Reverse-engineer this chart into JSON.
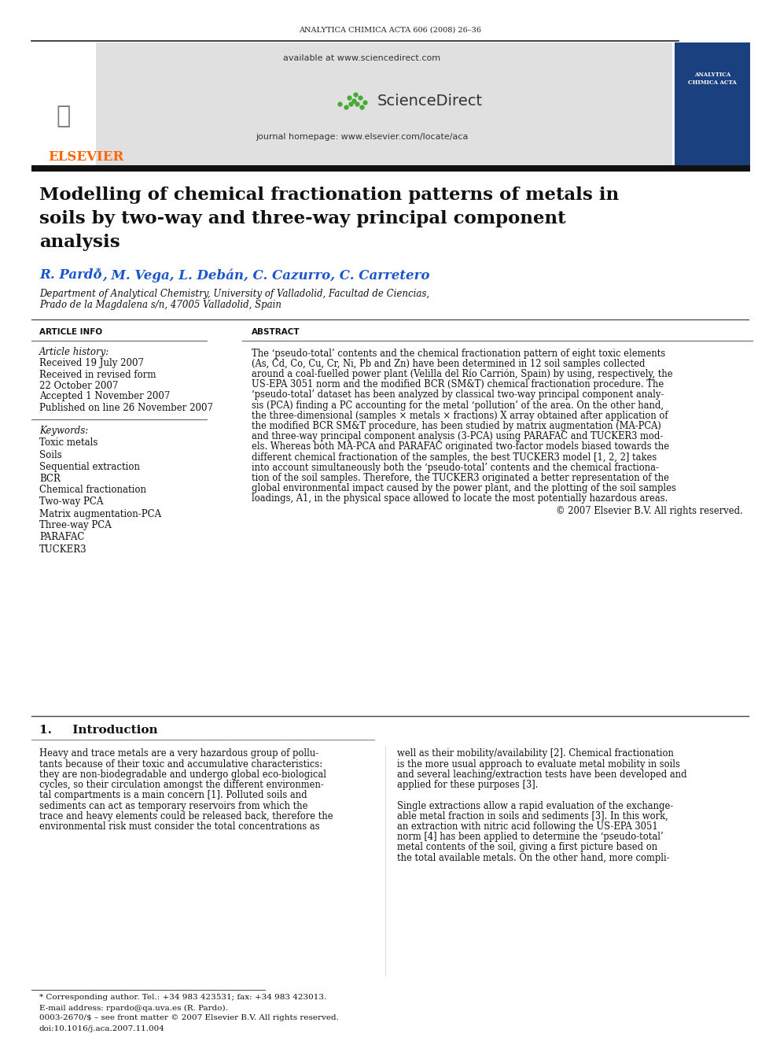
{
  "journal_header": "ANALYTICA CHIMICA ACTA 606 (2008) 26–36",
  "available_text": "available at www.sciencedirect.com",
  "journal_homepage": "journal homepage: www.elsevier.com/locate/aca",
  "sciencedirect_text": "ScienceDirect",
  "elsevier_text": "ELSEVIER",
  "elsevier_color": "#FF6600",
  "affiliation1": "Department of Analytical Chemistry, University of Valladolid, Facultad de Ciencias,",
  "affiliation2": "Prado de la Magdalena s/n, 47005 Valladolid, Spain",
  "article_info_header": "ARTICLE INFO",
  "abstract_header": "ABSTRACT",
  "article_history_label": "Article history:",
  "received1": "Received 19 July 2007",
  "received2": "Received in revised form",
  "received2b": "22 October 2007",
  "accepted": "Accepted 1 November 2007",
  "published": "Published on line 26 November 2007",
  "keywords_label": "Keywords:",
  "keywords": [
    "Toxic metals",
    "Soils",
    "Sequential extraction",
    "BCR",
    "Chemical fractionation",
    "Two-way PCA",
    "Matrix augmentation-PCA",
    "Three-way PCA",
    "PARAFAC",
    "TUCKER3"
  ],
  "abstract_copyright": "© 2007 Elsevier B.V. All rights reserved.",
  "section1_title": "1.     Introduction",
  "footnote_star": "* Corresponding author. Tel.: +34 983 423531; fax: +34 983 423013.",
  "footnote_email": "E-mail address: rpardo@qa.uva.es (R. Pardo).",
  "footnote_issn": "0003-2670/$ – see front matter © 2007 Elsevier B.V. All rights reserved.",
  "footnote_doi": "doi:10.1016/j.aca.2007.11.004",
  "bg_color": "#FFFFFF",
  "title_line1": "Modelling of chemical fractionation patterns of metals in",
  "title_line2": "soils by two-way and three-way principal component",
  "title_line3": "analysis",
  "author_line": "R. Pardo·, M. Vega, L. Debán, C. Cazurro, C. Carretero",
  "abstract_lines": [
    "The ‘pseudo-total’ contents and the chemical fractionation pattern of eight toxic elements",
    "(As, Cd, Co, Cu, Cr, Ni, Pb and Zn) have been determined in 12 soil samples collected",
    "around a coal-fuelled power plant (Velilla del Río Carrión, Spain) by using, respectively, the",
    "US-EPA 3051 norm and the modified BCR (SM&T) chemical fractionation procedure. The",
    "‘pseudo-total’ dataset has been analyzed by classical two-way principal component analy-",
    "sis (PCA) finding a PC accounting for the metal ‘pollution’ of the area. On the other hand,",
    "the three-dimensional (samples × metals × fractions) X array obtained after application of",
    "the modified BCR SM&T procedure, has been studied by matrix augmentation (MA-PCA)",
    "and three-way principal component analysis (3-PCA) using PARAFAC and TUCKER3 mod-",
    "els. Whereas both MA-PCA and PARAFAC originated two-factor models biased towards the",
    "different chemical fractionation of the samples, the best TUCKER3 model [1, 2, 2] takes",
    "into account simultaneously both the ‘pseudo-total’ contents and the chemical fractiona-",
    "tion of the soil samples. Therefore, the TUCKER3 originated a better representation of the",
    "global environmental impact caused by the power plant, and the plotting of the soil samples",
    "loadings, A1, in the physical space allowed to locate the most potentially hazardous areas."
  ],
  "intro_left_lines": [
    "Heavy and trace metals are a very hazardous group of pollu-",
    "tants because of their toxic and accumulative characteristics:",
    "they are non-biodegradable and undergo global eco-biological",
    "cycles, so their circulation amongst the different environmen-",
    "tal compartments is a main concern [1]. Polluted soils and",
    "sediments can act as temporary reservoirs from which the",
    "trace and heavy elements could be released back, therefore the",
    "environmental risk must consider the total concentrations as"
  ],
  "intro_right_lines": [
    "well as their mobility/availability [2]. Chemical fractionation",
    "is the more usual approach to evaluate metal mobility in soils",
    "and several leaching/extraction tests have been developed and",
    "applied for these purposes [3].",
    "",
    "Single extractions allow a rapid evaluation of the exchange-",
    "able metal fraction in soils and sediments [3]. In this work,",
    "an extraction with nitric acid following the US-EPA 3051",
    "norm [4] has been applied to determine the ‘pseudo-total’",
    "metal contents of the soil, giving a first picture based on",
    "the total available metals. On the other hand, more compli-"
  ]
}
